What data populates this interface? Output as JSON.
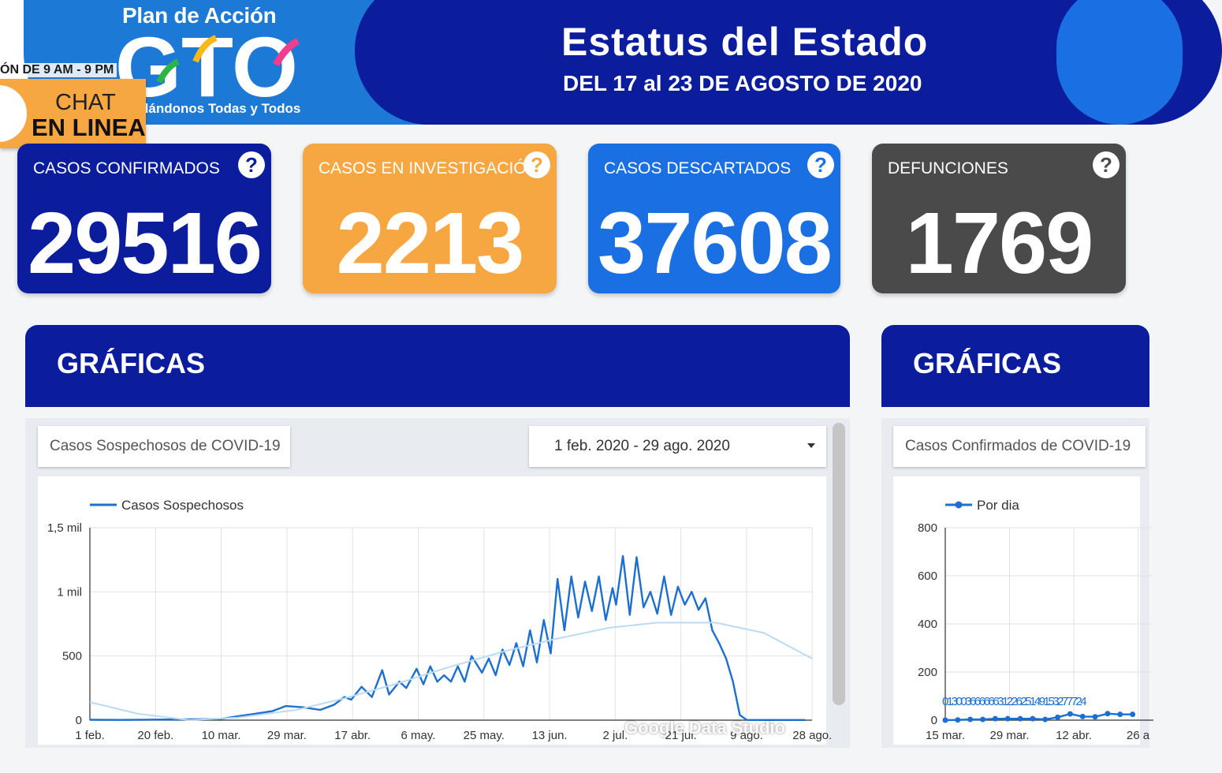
{
  "banner": {
    "plan_title": "Plan de Acción",
    "logo_text": "GTO",
    "tagline": "dándonos Todas y Todos",
    "hours_text": "ÓN DE 9 AM - 9 PM",
    "status_title": "Estatus del Estado",
    "status_subtitle": "DEL 17 al 23 DE AGOSTO DE 2020"
  },
  "chat": {
    "line1": "CHAT",
    "line2": "EN LINEA"
  },
  "kpis": [
    {
      "label": "CASOS CONFIRMADOS",
      "value": "29516",
      "color": "#0b1c9c"
    },
    {
      "label": "CASOS EN INVESTIGACIÓN",
      "value": "2213",
      "color": "#f7a741"
    },
    {
      "label": "CASOS DESCARTADOS",
      "value": "37608",
      "color": "#1a6fe3"
    },
    {
      "label": "DEFUNCIONES",
      "value": "1769",
      "color": "#4a4a4a"
    }
  ],
  "help_glyph": "?",
  "panels": {
    "left": {
      "title": "GRÁFICAS",
      "chart_selector": "Casos Sospechosos de COVID-19",
      "date_range": "1 feb. 2020 - 29 ago. 2020"
    },
    "right": {
      "title": "GRÁFICAS",
      "chart_selector": "Casos Confirmados de COVID-19"
    }
  },
  "watermark": "Google Data Studio",
  "chart_data": [
    {
      "type": "line",
      "legend": [
        "Casos Sospechosos"
      ],
      "legend_position": "top-left",
      "y_ticks": [
        "0",
        "500",
        "1 mil",
        "1,5 mil"
      ],
      "x_ticks": [
        "1 feb.",
        "20 feb.",
        "10 mar.",
        "29 mar.",
        "17 abr.",
        "6 may.",
        "25 may.",
        "13 jun.",
        "2 jul.",
        "21 jul.",
        "9 ago.",
        "28 ago."
      ],
      "ylim": [
        0,
        1500
      ],
      "grid": true,
      "trendline": true,
      "series": [
        {
          "name": "Casos Sospechosos",
          "color": "#1c6fd0",
          "x": [
            "2020-02-01",
            "2020-02-10",
            "2020-02-20",
            "2020-03-01",
            "2020-03-10",
            "2020-03-15",
            "2020-03-20",
            "2020-03-25",
            "2020-03-29",
            "2020-04-03",
            "2020-04-08",
            "2020-04-12",
            "2020-04-15",
            "2020-04-17",
            "2020-04-20",
            "2020-04-23",
            "2020-04-26",
            "2020-04-28",
            "2020-05-01",
            "2020-05-03",
            "2020-05-06",
            "2020-05-08",
            "2020-05-10",
            "2020-05-12",
            "2020-05-14",
            "2020-05-16",
            "2020-05-18",
            "2020-05-20",
            "2020-05-22",
            "2020-05-25",
            "2020-05-27",
            "2020-05-29",
            "2020-05-31",
            "2020-06-02",
            "2020-06-04",
            "2020-06-06",
            "2020-06-08",
            "2020-06-10",
            "2020-06-12",
            "2020-06-14",
            "2020-06-16",
            "2020-06-18",
            "2020-06-20",
            "2020-06-22",
            "2020-06-24",
            "2020-06-26",
            "2020-06-28",
            "2020-06-30",
            "2020-07-02",
            "2020-07-03",
            "2020-07-05",
            "2020-07-07",
            "2020-07-09",
            "2020-07-11",
            "2020-07-13",
            "2020-07-15",
            "2020-07-17",
            "2020-07-19",
            "2020-07-21",
            "2020-07-23",
            "2020-07-25",
            "2020-07-27",
            "2020-07-29",
            "2020-07-31",
            "2020-08-02",
            "2020-08-04",
            "2020-08-06",
            "2020-08-08",
            "2020-08-10",
            "2020-08-12",
            "2020-08-14",
            "2020-08-17",
            "2020-08-20",
            "2020-08-23",
            "2020-08-25",
            "2020-08-27"
          ],
          "values": [
            3,
            2,
            4,
            6,
            10,
            30,
            50,
            70,
            110,
            100,
            80,
            120,
            180,
            160,
            260,
            180,
            390,
            200,
            300,
            250,
            400,
            280,
            420,
            300,
            350,
            300,
            420,
            300,
            500,
            370,
            480,
            350,
            550,
            430,
            600,
            420,
            700,
            450,
            780,
            520,
            1100,
            700,
            1120,
            800,
            1080,
            850,
            1120,
            780,
            1030,
            900,
            1280,
            820,
            1270,
            880,
            1000,
            830,
            1120,
            820,
            1040,
            900,
            1000,
            860,
            950,
            700,
            600,
            480,
            300,
            40,
            2,
            1,
            1,
            1,
            1,
            1,
            1,
            1
          ]
        },
        {
          "name": "trend",
          "color": "#bcdaf2",
          "x": [
            "2020-02-01",
            "2020-02-15",
            "2020-03-01",
            "2020-03-15",
            "2020-04-01",
            "2020-04-15",
            "2020-05-01",
            "2020-05-15",
            "2020-06-01",
            "2020-06-15",
            "2020-07-01",
            "2020-07-15",
            "2020-08-01",
            "2020-08-15",
            "2020-08-29"
          ],
          "values": [
            140,
            50,
            0,
            20,
            80,
            170,
            290,
            410,
            540,
            630,
            720,
            760,
            760,
            680,
            480
          ]
        }
      ]
    },
    {
      "type": "line",
      "legend": [
        "Por dia"
      ],
      "legend_position": "top-left",
      "y_ticks": [
        "0",
        "200",
        "400",
        "600",
        "800"
      ],
      "x_ticks": [
        "15 mar.",
        "29 mar.",
        "12 abr.",
        "26 a"
      ],
      "ylim": [
        0,
        800
      ],
      "grid": true,
      "data_labels": "0130036666663122625149153277724",
      "series": [
        {
          "name": "Por dia",
          "color": "#1c6fd0",
          "x": [
            "2020-03-15",
            "2020-03-18",
            "2020-03-21",
            "2020-03-24",
            "2020-03-27",
            "2020-03-30",
            "2020-04-02",
            "2020-04-05",
            "2020-04-08",
            "2020-04-11",
            "2020-04-14",
            "2020-04-17",
            "2020-04-20",
            "2020-04-23",
            "2020-04-26",
            "2020-04-29"
          ],
          "values": [
            0,
            1,
            3,
            3,
            6,
            6,
            6,
            6,
            3,
            12,
            26,
            15,
            14,
            27,
            24,
            24
          ]
        }
      ]
    }
  ]
}
